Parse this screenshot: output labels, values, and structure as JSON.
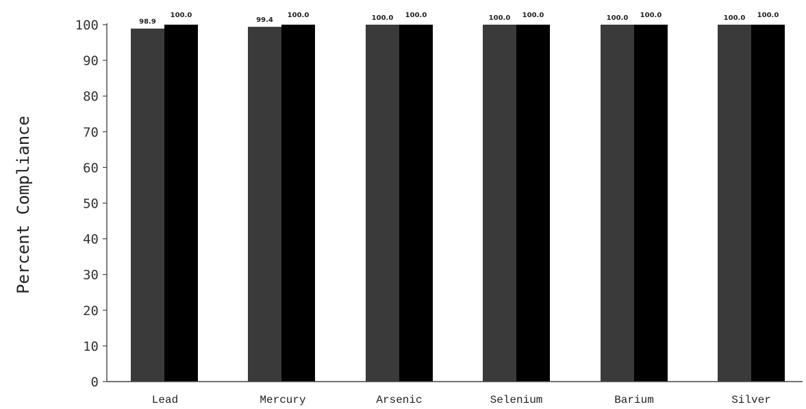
{
  "chart_data": {
    "type": "bar",
    "categories": [
      "Lead",
      "Mercury",
      "Arsenic",
      "Selenium",
      "Barium",
      "Silver"
    ],
    "series": [
      {
        "values": [
          98.9,
          99.4,
          100.0,
          100.0,
          100.0,
          100.0
        ],
        "data_labels": [
          "98.9",
          "99.4",
          "100.0",
          "100.0",
          "100.0",
          "100.0"
        ]
      },
      {
        "values": [
          100.0,
          100.0,
          100.0,
          100.0,
          100.0,
          100.0
        ],
        "data_labels": [
          "100.0",
          "100.0",
          "100.0",
          "100.0",
          "100.0",
          "100.0"
        ]
      }
    ],
    "title": "",
    "xlabel": "",
    "ylabel": "Percent Compliance",
    "ylim": [
      0,
      100
    ],
    "yticks": [
      "0",
      "10",
      "20",
      "30",
      "40",
      "50",
      "60",
      "70",
      "80",
      "90",
      "100"
    ],
    "grid": false,
    "legend": "none",
    "colors": {
      "series_1": "#3a3a3a",
      "series_2": "#000000",
      "axis": "#444444"
    }
  }
}
